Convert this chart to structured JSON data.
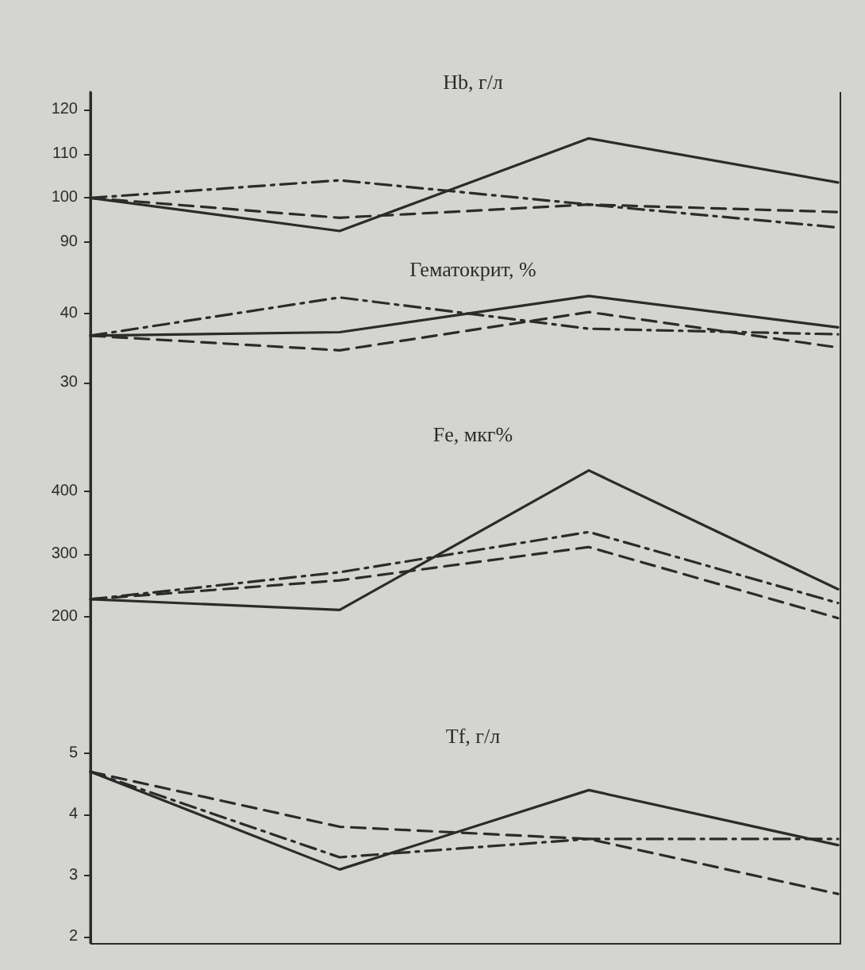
{
  "chart_data": [
    {
      "type": "line",
      "title": "Hb, г/л",
      "categories": [
        null,
        null,
        null,
        null
      ],
      "ylim": [
        88,
        124
      ],
      "yticks": [
        90,
        100,
        110,
        120
      ],
      "tick_labels": "y",
      "marker": "none",
      "series": [
        {
          "color": "#2b2b2b",
          "line_style": "solid",
          "values": [
            100,
            92.5,
            113.5,
            103.5
          ]
        },
        {
          "color": "#2b2b2b",
          "line_style": "dashed",
          "values": [
            100,
            95.5,
            98.5,
            96.8
          ]
        },
        {
          "color": "#2b2b2b",
          "line_style": "dashdot",
          "values": [
            100,
            104,
            98.5,
            93.3
          ]
        }
      ]
    },
    {
      "type": "line",
      "title": "Гематокрит, %",
      "categories": [
        null,
        null,
        null,
        null
      ],
      "ylim": [
        28,
        49
      ],
      "yticks": [
        30,
        40
      ],
      "tick_labels": "y",
      "marker": "none",
      "series": [
        {
          "color": "#2b2b2b",
          "line_style": "solid",
          "values": [
            36.8,
            37.3,
            42.5,
            38
          ]
        },
        {
          "color": "#2b2b2b",
          "line_style": "dashed",
          "values": [
            36.8,
            34.7,
            40.2,
            35.1
          ]
        },
        {
          "color": "#2b2b2b",
          "line_style": "dashdot",
          "values": [
            36.8,
            42.3,
            37.8,
            37
          ]
        }
      ]
    },
    {
      "type": "line",
      "title": "Fe, мкг%",
      "categories": [
        null,
        null,
        null,
        null
      ],
      "ylim": [
        70,
        550
      ],
      "yticks": [
        200,
        300,
        400
      ],
      "tick_labels": "y",
      "marker": "none",
      "series": [
        {
          "color": "#2b2b2b",
          "line_style": "solid",
          "values": [
            228,
            211,
            433,
            244
          ]
        },
        {
          "color": "#2b2b2b",
          "line_style": "dashed",
          "values": [
            228,
            258,
            311,
            198
          ]
        },
        {
          "color": "#2b2b2b",
          "line_style": "dashdot",
          "values": [
            228,
            271,
            335,
            222
          ]
        }
      ]
    },
    {
      "type": "line",
      "title": "Tf, г/л",
      "categories": [
        null,
        null,
        null,
        null
      ],
      "ylim": [
        1.9,
        5.9
      ],
      "yticks": [
        2,
        3,
        4,
        5
      ],
      "tick_labels": "y",
      "marker": "none",
      "series": [
        {
          "color": "#2b2b2b",
          "line_style": "solid",
          "values": [
            4.7,
            3.1,
            4.4,
            3.5
          ]
        },
        {
          "color": "#2b2b2b",
          "line_style": "dashed",
          "values": [
            4.7,
            3.8,
            3.6,
            2.7
          ]
        },
        {
          "color": "#2b2b2b",
          "line_style": "dashdot",
          "values": [
            4.7,
            3.3,
            3.6,
            3.6
          ]
        }
      ]
    }
  ]
}
